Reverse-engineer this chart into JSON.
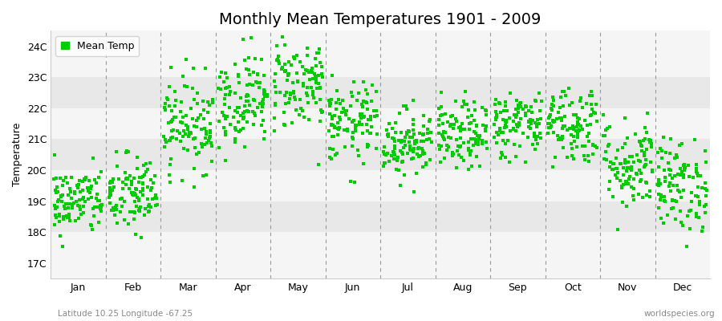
{
  "title": "Monthly Mean Temperatures 1901 - 2009",
  "ylabel": "Temperature",
  "month_labels": [
    "Jan",
    "Feb",
    "Mar",
    "Apr",
    "May",
    "Jun",
    "Jul",
    "Aug",
    "Sep",
    "Oct",
    "Nov",
    "Dec"
  ],
  "ytick_labels": [
    "17C",
    "18C",
    "19C",
    "20C",
    "21C",
    "22C",
    "23C",
    "24C"
  ],
  "ytick_values": [
    17,
    18,
    19,
    20,
    21,
    22,
    23,
    24
  ],
  "ylim": [
    16.5,
    24.5
  ],
  "dot_color": "#00CC00",
  "dot_size": 5,
  "bg_color": "#FFFFFF",
  "plot_bg_color": "#F5F5F5",
  "stripe_light": "#F5F5F5",
  "stripe_dark": "#E8E8E8",
  "dashed_line_color": "#999999",
  "legend_label": "Mean Temp",
  "subtitle_left": "Latitude 10.25 Longitude -67.25",
  "subtitle_right": "worldspecies.org",
  "title_fontsize": 14,
  "label_fontsize": 9,
  "tick_fontsize": 9,
  "monthly_means": [
    19.0,
    19.2,
    21.5,
    22.3,
    22.8,
    21.5,
    20.9,
    21.1,
    21.5,
    21.5,
    20.2,
    19.5
  ],
  "monthly_stds": [
    0.55,
    0.65,
    0.75,
    0.75,
    0.75,
    0.65,
    0.55,
    0.55,
    0.55,
    0.65,
    0.75,
    0.75
  ],
  "n_years": 109
}
